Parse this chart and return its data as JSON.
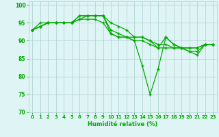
{
  "xlabel": "Humidité relative (%)",
  "background_color": "#dff4f4",
  "grid_color": "#aacfcf",
  "line_color": "#00aa00",
  "marker": "+",
  "ylim": [
    70,
    101
  ],
  "xlim": [
    -0.5,
    23.5
  ],
  "yticks": [
    70,
    75,
    80,
    85,
    90,
    95,
    100
  ],
  "xticks": [
    0,
    1,
    2,
    3,
    4,
    5,
    6,
    7,
    8,
    9,
    10,
    11,
    12,
    13,
    14,
    15,
    16,
    17,
    18,
    19,
    20,
    21,
    22,
    23
  ],
  "series": [
    [
      93,
      94,
      95,
      95,
      95,
      95,
      97,
      97,
      97,
      97,
      95,
      94,
      93,
      91,
      91,
      90,
      88,
      91,
      89,
      88,
      87,
      87,
      89,
      89
    ],
    [
      93,
      95,
      95,
      95,
      95,
      95,
      97,
      97,
      97,
      97,
      93,
      92,
      91,
      90,
      83,
      75,
      82,
      91,
      89,
      88,
      87,
      86,
      89,
      89
    ],
    [
      93,
      94,
      95,
      95,
      95,
      95,
      96,
      97,
      97,
      97,
      92,
      91,
      91,
      90,
      90,
      89,
      88,
      88,
      88,
      88,
      88,
      88,
      89,
      89
    ],
    [
      93,
      94,
      95,
      95,
      95,
      95,
      96,
      96,
      96,
      95,
      92,
      91,
      91,
      91,
      91,
      90,
      89,
      89,
      88,
      88,
      88,
      88,
      89,
      89
    ]
  ]
}
